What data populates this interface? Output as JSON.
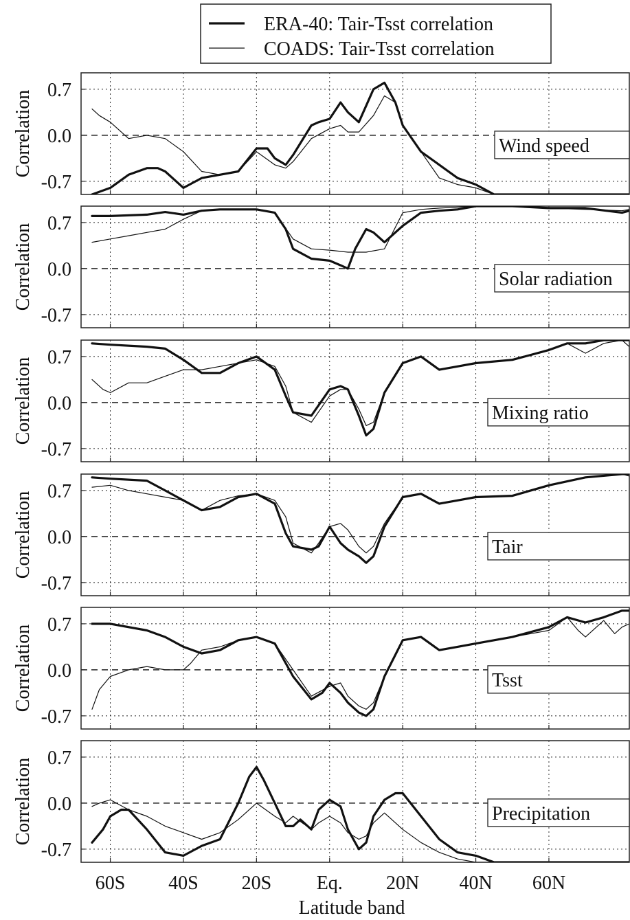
{
  "legend": {
    "entries": [
      {
        "label": "ERA-40: Tair-Tsst correlation",
        "style": "thick"
      },
      {
        "label": "COADS: Tair-Tsst correlation",
        "style": "thin"
      }
    ],
    "placement": "top"
  },
  "chart_data": {
    "type": "line",
    "xlabel": "Latitude band",
    "ylabel": "Correlation",
    "xlim": [
      -68,
      82
    ],
    "x_ticks": [
      -60,
      -40,
      -20,
      0,
      20,
      40,
      60
    ],
    "x_tick_labels": [
      "60S",
      "40S",
      "20S",
      "Eq.",
      "20N",
      "40N",
      "60N"
    ],
    "ylim": [
      -0.9,
      0.95
    ],
    "y_ticks": [
      0.7,
      0.0,
      -0.7
    ],
    "y_tick_labels": [
      "0.7",
      "0.0",
      "-0.7"
    ],
    "grid": "dotted",
    "zero_line": "dashed",
    "panels": [
      {
        "name": "Wind speed",
        "series": [
          {
            "name": "ERA-40: Tair-Tsst correlation",
            "style": "thick",
            "x": [
              -65,
              -60,
              -55,
              -50,
              -47,
              -45,
              -40,
              -35,
              -30,
              -25,
              -20,
              -17,
              -15,
              -12,
              -10,
              -5,
              -3,
              0,
              3,
              5,
              8,
              10,
              12,
              15,
              18,
              20,
              25,
              30,
              35,
              40,
              45,
              50,
              55,
              60,
              65,
              70,
              75,
              80,
              82
            ],
            "y": [
              -0.95,
              -0.8,
              -0.6,
              -0.5,
              -0.5,
              -0.55,
              -0.8,
              -0.65,
              -0.6,
              -0.55,
              -0.2,
              -0.2,
              -0.35,
              -0.45,
              -0.3,
              0.15,
              0.2,
              0.25,
              0.5,
              0.35,
              0.2,
              0.45,
              0.7,
              0.8,
              0.5,
              0.15,
              -0.25,
              -0.45,
              -0.65,
              -0.75,
              -0.9,
              -0.95,
              -1.0,
              -1.0,
              -1.0,
              -1.0,
              -0.98,
              -0.97,
              -1.0
            ]
          },
          {
            "name": "COADS: Tair-Tsst correlation",
            "style": "thin",
            "x": [
              -65,
              -63,
              -60,
              -57,
              -55,
              -50,
              -45,
              -40,
              -35,
              -30,
              -25,
              -20,
              -15,
              -12,
              -10,
              -5,
              0,
              3,
              5,
              8,
              12,
              15,
              18,
              20,
              25,
              30,
              35,
              40,
              45,
              50,
              55,
              60,
              65,
              70,
              75,
              78,
              80,
              82
            ],
            "y": [
              0.4,
              0.3,
              0.2,
              0.05,
              -0.05,
              0.0,
              -0.05,
              -0.25,
              -0.55,
              -0.6,
              -0.55,
              -0.25,
              -0.45,
              -0.5,
              -0.4,
              -0.05,
              0.1,
              0.15,
              0.05,
              0.05,
              0.3,
              0.6,
              0.5,
              0.15,
              -0.25,
              -0.65,
              -0.75,
              -0.8,
              -0.9,
              -0.95,
              -1.0,
              -1.0,
              -1.0,
              -1.0,
              -1.0,
              -0.95,
              -0.9,
              -0.95
            ]
          }
        ]
      },
      {
        "name": "Solar radiation",
        "series": [
          {
            "name": "ERA-40: Tair-Tsst correlation",
            "style": "thick",
            "x": [
              -65,
              -60,
              -50,
              -45,
              -40,
              -35,
              -30,
              -20,
              -15,
              -12,
              -10,
              -5,
              0,
              3,
              5,
              7,
              10,
              12,
              15,
              20,
              25,
              30,
              35,
              40,
              50,
              60,
              70,
              80,
              82
            ],
            "y": [
              0.8,
              0.8,
              0.82,
              0.86,
              0.82,
              0.88,
              0.9,
              0.9,
              0.85,
              0.6,
              0.3,
              0.15,
              0.12,
              0.05,
              0.0,
              0.3,
              0.6,
              0.55,
              0.4,
              0.65,
              0.85,
              0.88,
              0.9,
              0.95,
              0.95,
              0.92,
              0.92,
              0.85,
              0.88
            ]
          },
          {
            "name": "COADS: Tair-Tsst correlation",
            "style": "thin",
            "x": [
              -65,
              -60,
              -55,
              -50,
              -45,
              -40,
              -35,
              -30,
              -20,
              -15,
              -10,
              -5,
              0,
              5,
              10,
              15,
              20,
              25,
              30,
              40,
              50,
              60,
              70,
              80,
              82
            ],
            "y": [
              0.4,
              0.45,
              0.5,
              0.55,
              0.6,
              0.75,
              0.88,
              0.9,
              0.9,
              0.85,
              0.45,
              0.3,
              0.28,
              0.25,
              0.25,
              0.3,
              0.85,
              0.9,
              0.92,
              0.95,
              0.95,
              0.92,
              0.9,
              0.88,
              0.9
            ]
          }
        ]
      },
      {
        "name": "Mixing ratio",
        "series": [
          {
            "name": "ERA-40: Tair-Tsst correlation",
            "style": "thick",
            "x": [
              -65,
              -60,
              -50,
              -45,
              -40,
              -35,
              -30,
              -25,
              -20,
              -15,
              -12,
              -10,
              -5,
              0,
              3,
              5,
              8,
              10,
              12,
              15,
              20,
              25,
              30,
              35,
              40,
              50,
              60,
              65,
              70,
              75,
              80,
              82
            ],
            "y": [
              0.9,
              0.88,
              0.85,
              0.82,
              0.65,
              0.45,
              0.45,
              0.6,
              0.7,
              0.5,
              0.1,
              -0.15,
              -0.2,
              0.2,
              0.25,
              0.2,
              -0.2,
              -0.5,
              -0.4,
              0.15,
              0.6,
              0.7,
              0.5,
              0.55,
              0.6,
              0.65,
              0.8,
              0.9,
              0.9,
              0.95,
              0.98,
              0.98
            ]
          },
          {
            "name": "COADS: Tair-Tsst correlation",
            "style": "thin",
            "x": [
              -65,
              -62,
              -60,
              -55,
              -50,
              -45,
              -40,
              -35,
              -30,
              -25,
              -20,
              -15,
              -12,
              -10,
              -5,
              0,
              3,
              5,
              8,
              10,
              12,
              15,
              20,
              25,
              30,
              35,
              40,
              50,
              60,
              65,
              70,
              75,
              80,
              82
            ],
            "y": [
              0.35,
              0.2,
              0.15,
              0.3,
              0.3,
              0.4,
              0.5,
              0.5,
              0.55,
              0.6,
              0.65,
              0.55,
              0.25,
              -0.15,
              -0.3,
              0.1,
              0.2,
              0.2,
              -0.1,
              -0.35,
              -0.3,
              0.15,
              0.6,
              0.7,
              0.5,
              0.55,
              0.6,
              0.65,
              0.8,
              0.9,
              0.75,
              0.9,
              0.95,
              0.85
            ]
          }
        ]
      },
      {
        "name": "Tair",
        "series": [
          {
            "name": "ERA-40: Tair-Tsst correlation",
            "style": "thick",
            "x": [
              -65,
              -60,
              -50,
              -45,
              -40,
              -35,
              -30,
              -25,
              -20,
              -15,
              -12,
              -10,
              -5,
              -3,
              0,
              3,
              5,
              8,
              10,
              12,
              15,
              20,
              25,
              30,
              35,
              40,
              50,
              60,
              70,
              80,
              82
            ],
            "y": [
              0.9,
              0.88,
              0.85,
              0.7,
              0.55,
              0.4,
              0.45,
              0.6,
              0.65,
              0.5,
              0.05,
              -0.15,
              -0.2,
              -0.15,
              0.15,
              -0.1,
              -0.2,
              -0.3,
              -0.4,
              -0.3,
              0.15,
              0.6,
              0.65,
              0.5,
              0.55,
              0.6,
              0.62,
              0.78,
              0.9,
              0.95,
              0.97
            ]
          },
          {
            "name": "COADS: Tair-Tsst correlation",
            "style": "thin",
            "x": [
              -65,
              -60,
              -55,
              -50,
              -45,
              -40,
              -35,
              -30,
              -25,
              -20,
              -15,
              -12,
              -10,
              -5,
              -3,
              0,
              3,
              5,
              8,
              10,
              12,
              15,
              20,
              25,
              30,
              35,
              40,
              50,
              60,
              70,
              80,
              82
            ],
            "y": [
              0.75,
              0.78,
              0.7,
              0.65,
              0.6,
              0.55,
              0.4,
              0.55,
              0.62,
              0.65,
              0.55,
              0.3,
              -0.1,
              -0.25,
              -0.1,
              0.15,
              0.2,
              0.1,
              -0.15,
              -0.25,
              -0.15,
              0.2,
              0.6,
              0.65,
              0.5,
              0.55,
              0.6,
              0.62,
              0.78,
              0.9,
              0.95,
              0.92
            ]
          }
        ]
      },
      {
        "name": "Tsst",
        "series": [
          {
            "name": "ERA-40: Tair-Tsst correlation",
            "style": "thick",
            "x": [
              -65,
              -60,
              -50,
              -45,
              -40,
              -35,
              -30,
              -25,
              -20,
              -15,
              -10,
              -5,
              -2,
              0,
              3,
              5,
              8,
              10,
              12,
              15,
              20,
              25,
              30,
              35,
              40,
              50,
              60,
              65,
              70,
              75,
              80,
              82
            ],
            "y": [
              0.7,
              0.7,
              0.6,
              0.5,
              0.35,
              0.25,
              0.3,
              0.45,
              0.5,
              0.4,
              -0.1,
              -0.45,
              -0.35,
              -0.2,
              -0.35,
              -0.5,
              -0.65,
              -0.7,
              -0.6,
              -0.1,
              0.45,
              0.5,
              0.3,
              0.35,
              0.4,
              0.5,
              0.65,
              0.8,
              0.72,
              0.8,
              0.9,
              0.9
            ]
          },
          {
            "name": "COADS: Tair-Tsst correlation",
            "style": "thin",
            "x": [
              -65,
              -63,
              -60,
              -55,
              -50,
              -45,
              -40,
              -38,
              -35,
              -30,
              -25,
              -20,
              -15,
              -10,
              -5,
              0,
              3,
              5,
              8,
              10,
              12,
              15,
              20,
              25,
              30,
              35,
              40,
              50,
              60,
              65,
              68,
              70,
              75,
              78,
              80,
              82
            ],
            "y": [
              -0.6,
              -0.3,
              -0.1,
              0.0,
              0.05,
              0.0,
              0.0,
              0.1,
              0.3,
              0.35,
              0.45,
              0.5,
              0.4,
              0.0,
              -0.4,
              -0.25,
              -0.2,
              -0.4,
              -0.55,
              -0.6,
              -0.5,
              -0.1,
              0.45,
              0.5,
              0.3,
              0.35,
              0.4,
              0.5,
              0.6,
              0.8,
              0.6,
              0.5,
              0.75,
              0.55,
              0.65,
              0.7
            ]
          }
        ]
      },
      {
        "name": "Precipitation",
        "series": [
          {
            "name": "ERA-40: Tair-Tsst correlation",
            "style": "thick",
            "x": [
              -65,
              -62,
              -60,
              -57,
              -55,
              -50,
              -45,
              -40,
              -35,
              -30,
              -25,
              -22,
              -20,
              -18,
              -15,
              -12,
              -10,
              -8,
              -5,
              -3,
              0,
              3,
              5,
              8,
              10,
              12,
              15,
              18,
              20,
              25,
              30,
              35,
              40,
              45,
              50,
              60,
              70,
              80,
              82
            ],
            "y": [
              -0.6,
              -0.4,
              -0.2,
              -0.1,
              -0.1,
              -0.4,
              -0.75,
              -0.8,
              -0.65,
              -0.55,
              0.0,
              0.4,
              0.55,
              0.35,
              0.0,
              -0.35,
              -0.35,
              -0.25,
              -0.4,
              -0.1,
              0.05,
              -0.05,
              -0.4,
              -0.7,
              -0.6,
              -0.2,
              0.05,
              0.15,
              0.15,
              -0.2,
              -0.55,
              -0.75,
              -0.8,
              -0.9,
              -0.95,
              -0.95,
              -0.97,
              -1.0,
              -1.0
            ]
          },
          {
            "name": "COADS: Tair-Tsst correlation",
            "style": "thin",
            "x": [
              -65,
              -63,
              -60,
              -55,
              -50,
              -45,
              -40,
              -35,
              -30,
              -25,
              -20,
              -15,
              -12,
              -10,
              -5,
              -3,
              0,
              3,
              5,
              8,
              10,
              12,
              15,
              20,
              25,
              30,
              35,
              40,
              50,
              60,
              70,
              80,
              82
            ],
            "y": [
              -0.05,
              0.0,
              0.05,
              -0.1,
              -0.2,
              -0.35,
              -0.45,
              -0.55,
              -0.45,
              -0.25,
              0.0,
              -0.2,
              -0.3,
              -0.2,
              -0.4,
              -0.3,
              -0.2,
              -0.3,
              -0.45,
              -0.55,
              -0.5,
              -0.3,
              -0.15,
              -0.4,
              -0.6,
              -0.75,
              -0.85,
              -0.9,
              -0.97,
              -1.0,
              -1.0,
              -0.97,
              -1.0
            ]
          }
        ]
      }
    ]
  }
}
